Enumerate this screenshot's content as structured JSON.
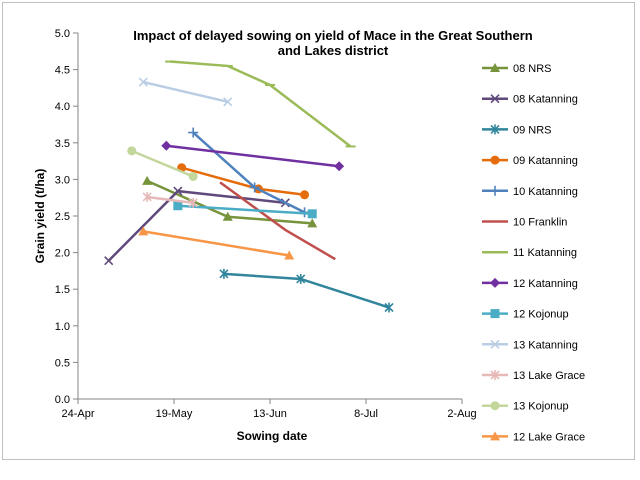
{
  "chart_data": {
    "type": "line",
    "title_line1": "Impact of delayed sowing on yield of Mace in the Great Southern",
    "title_line2": "and Lakes district",
    "xlabel": "Sowing date",
    "ylabel": "Grain yield (t/ha)",
    "x_ticks": [
      "24-Apr",
      "19-May",
      "13-Jun",
      "8-Jul",
      "2-Aug"
    ],
    "xlim": [
      "2013-04-24",
      "2013-08-02"
    ],
    "ylim": [
      0,
      5
    ],
    "y_ticks": [
      "0.0",
      "0.5",
      "1.0",
      "1.5",
      "2.0",
      "2.5",
      "3.0",
      "3.5",
      "4.0",
      "4.5",
      "5.0"
    ],
    "legend_position": "right",
    "grid": false,
    "series": [
      {
        "name": "08 NRS",
        "color": "#77933c",
        "marker": "triangle",
        "points": [
          [
            "2013-05-12",
            2.98
          ],
          [
            "2013-06-02",
            2.49
          ],
          [
            "2013-06-24",
            2.4
          ]
        ]
      },
      {
        "name": "08 Katanning",
        "color": "#604a7b",
        "marker": "x",
        "points": [
          [
            "2013-05-02",
            1.89
          ],
          [
            "2013-05-20",
            2.84
          ],
          [
            "2013-06-17",
            2.68
          ]
        ]
      },
      {
        "name": "09 NRS",
        "color": "#31859c",
        "marker": "star",
        "points": [
          [
            "2013-06-01",
            1.71
          ],
          [
            "2013-06-21",
            1.64
          ],
          [
            "2013-07-14",
            1.25
          ]
        ]
      },
      {
        "name": "09 Katanning",
        "color": "#e46c0a",
        "marker": "circle",
        "points": [
          [
            "2013-05-21",
            3.16
          ],
          [
            "2013-06-10",
            2.87
          ],
          [
            "2013-06-22",
            2.79
          ]
        ]
      },
      {
        "name": "10 Katanning",
        "color": "#4f81bd",
        "marker": "plus",
        "points": [
          [
            "2013-05-24",
            3.64
          ],
          [
            "2013-06-09",
            2.89
          ],
          [
            "2013-06-22",
            2.55
          ]
        ]
      },
      {
        "name": "10 Franklin",
        "color": "#c0504d",
        "marker": "none",
        "points": [
          [
            "2013-05-31",
            2.96
          ],
          [
            "2013-06-17",
            2.31
          ],
          [
            "2013-06-30",
            1.91
          ]
        ]
      },
      {
        "name": "11 Katanning",
        "color": "#9bbb59",
        "marker": "dash",
        "points": [
          [
            "2013-05-18",
            4.61
          ],
          [
            "2013-06-02",
            4.55
          ],
          [
            "2013-06-13",
            4.29
          ],
          [
            "2013-07-04",
            3.45
          ]
        ]
      },
      {
        "name": "12 Katanning",
        "color": "#7030a0",
        "marker": "diamond",
        "points": [
          [
            "2013-05-17",
            3.46
          ],
          [
            "2013-07-01",
            3.18
          ]
        ]
      },
      {
        "name": "12 Kojonup",
        "color": "#4bacc6",
        "marker": "square",
        "points": [
          [
            "2013-05-20",
            2.64
          ],
          [
            "2013-06-24",
            2.53
          ]
        ]
      },
      {
        "name": "13 Katanning",
        "color": "#b9cde5",
        "marker": "x",
        "points": [
          [
            "2013-05-11",
            4.33
          ],
          [
            "2013-06-02",
            4.06
          ]
        ]
      },
      {
        "name": "13 Lake Grace",
        "color": "#e6b9b8",
        "marker": "star",
        "points": [
          [
            "2013-05-12",
            2.76
          ],
          [
            "2013-05-24",
            2.68
          ]
        ]
      },
      {
        "name": "13 Kojonup",
        "color": "#c3d69b",
        "marker": "circle",
        "points": [
          [
            "2013-05-08",
            3.39
          ],
          [
            "2013-05-24",
            3.04
          ]
        ]
      },
      {
        "name": "12 Lake Grace",
        "color": "#f79646",
        "marker": "triangle",
        "points": [
          [
            "2013-05-11",
            2.29
          ],
          [
            "2013-06-18",
            1.96
          ]
        ]
      }
    ]
  }
}
